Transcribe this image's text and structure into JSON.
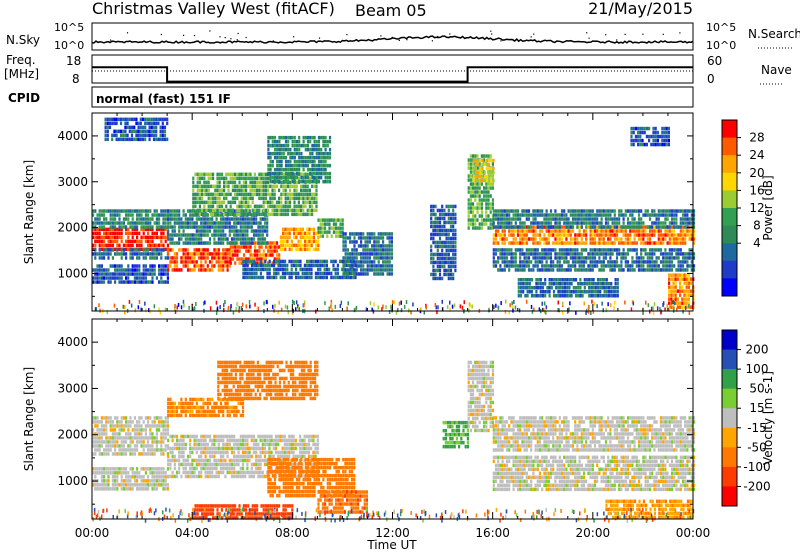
{
  "header": {
    "station": "Christmas Valley West (fitACF)",
    "beam": "Beam 05",
    "date": "21/May/2015"
  },
  "panels": {
    "nsky": {
      "label": "N.Sky",
      "tick_top": "10^5",
      "tick_bottom": "10^0",
      "right_label": "N.Search"
    },
    "freq": {
      "label_line1": "Freq.",
      "label_line2": "[MHz]",
      "tick_top": "18",
      "tick_bottom": "8",
      "right_tick_top": "60",
      "right_tick_bottom": "0",
      "right_label": "Nave"
    },
    "cpid": {
      "label": "CPID",
      "text": "normal (fast) 151 IF"
    }
  },
  "colorbars": {
    "power": {
      "title": "Power [dB]",
      "ticks": [
        "28",
        "24",
        "20",
        "16",
        "12",
        "8",
        "4"
      ],
      "colors": [
        "#ff0000",
        "#ff5a00",
        "#ffa500",
        "#ffd700",
        "#9acd32",
        "#32a050",
        "#2e8b57",
        "#1e6aa0",
        "#1e3cc8",
        "#0000ff"
      ]
    },
    "velocity": {
      "title": "Velocity [m s-1]",
      "ticks": [
        "200",
        "100",
        "50",
        "15",
        "-15",
        "-50",
        "-100",
        "-200"
      ],
      "colors": [
        "#0000c8",
        "#2850b4",
        "#32a046",
        "#7acd32",
        "#bebebe",
        "#ffa500",
        "#ff7800",
        "#ff3c00",
        "#ff0000"
      ]
    }
  },
  "chart_data": [
    {
      "type": "heatmap",
      "title": "Power",
      "ylabel": "Slant Range [km]",
      "xlabel": "",
      "x_ticks": [
        "00:00",
        "04:00",
        "08:00",
        "12:00",
        "16:00",
        "20:00",
        "00:00"
      ],
      "y_ticks": [
        "1000",
        "2000",
        "3000",
        "4000"
      ],
      "ylim": [
        180,
        4500
      ],
      "colorbar_range": [
        0,
        30
      ],
      "bands": [
        {
          "t0": 0.0,
          "t1": 3.0,
          "r0": 1550,
          "r1": 2000,
          "p": 28
        },
        {
          "t0": 0.0,
          "t1": 3.0,
          "r0": 2000,
          "r1": 2400,
          "p": 10
        },
        {
          "t0": 0.0,
          "t1": 3.0,
          "r0": 1300,
          "r1": 1550,
          "p": 8
        },
        {
          "t0": 0.0,
          "t1": 3.0,
          "r0": 800,
          "r1": 1200,
          "p": 6
        },
        {
          "t0": 0.5,
          "t1": 3.0,
          "r0": 3900,
          "r1": 4400,
          "p": 6
        },
        {
          "t0": 3.0,
          "t1": 5.5,
          "r0": 1050,
          "r1": 1550,
          "p": 26
        },
        {
          "t0": 5.5,
          "t1": 7.5,
          "r0": 1250,
          "r1": 1700,
          "p": 26
        },
        {
          "t0": 7.5,
          "t1": 9.0,
          "r0": 1500,
          "r1": 2000,
          "p": 22
        },
        {
          "t0": 9.0,
          "t1": 10.0,
          "r0": 1800,
          "r1": 2200,
          "p": 14
        },
        {
          "t0": 3.0,
          "t1": 7.0,
          "r0": 1700,
          "r1": 2400,
          "p": 9
        },
        {
          "t0": 4.0,
          "t1": 9.0,
          "r0": 2300,
          "r1": 3200,
          "p": 14
        },
        {
          "t0": 7.0,
          "t1": 9.5,
          "r0": 3000,
          "r1": 4000,
          "p": 10
        },
        {
          "t0": 6.0,
          "t1": 10.5,
          "r0": 900,
          "r1": 1300,
          "p": 7
        },
        {
          "t0": 10.0,
          "t1": 12.0,
          "r0": 1000,
          "r1": 1900,
          "p": 8
        },
        {
          "t0": 13.5,
          "t1": 14.5,
          "r0": 900,
          "r1": 2500,
          "p": 7
        },
        {
          "t0": 15.0,
          "t1": 16.0,
          "r0": 2000,
          "r1": 3600,
          "p": 14
        },
        {
          "t0": 15.2,
          "t1": 16.0,
          "r0": 3000,
          "r1": 3500,
          "p": 20
        },
        {
          "t0": 16.0,
          "t1": 24.0,
          "r0": 1650,
          "r1": 2050,
          "p": 24
        },
        {
          "t0": 16.0,
          "t1": 24.0,
          "r0": 2050,
          "r1": 2400,
          "p": 9
        },
        {
          "t0": 16.0,
          "t1": 24.0,
          "r0": 1050,
          "r1": 1550,
          "p": 8
        },
        {
          "t0": 17.0,
          "t1": 21.0,
          "r0": 500,
          "r1": 900,
          "p": 8
        },
        {
          "t0": 23.0,
          "t1": 24.0,
          "r0": 300,
          "r1": 1000,
          "p": 24
        },
        {
          "t0": 21.5,
          "t1": 23.0,
          "r0": 3800,
          "r1": 4200,
          "p": 6
        }
      ]
    },
    {
      "type": "heatmap",
      "title": "Velocity",
      "ylabel": "Slant Range [km]",
      "xlabel": "Time UT",
      "x_ticks": [
        "00:00",
        "04:00",
        "08:00",
        "12:00",
        "16:00",
        "20:00",
        "00:00"
      ],
      "y_ticks": [
        "1000",
        "2000",
        "3000",
        "4000"
      ],
      "ylim": [
        180,
        4500
      ],
      "colorbar_range": [
        -250,
        250
      ],
      "bands": [
        {
          "t0": 0.0,
          "t1": 3.0,
          "r0": 1550,
          "r1": 2400,
          "v": 0
        },
        {
          "t0": 0.0,
          "t1": 3.0,
          "r0": 800,
          "r1": 1300,
          "v": 0
        },
        {
          "t0": 3.0,
          "t1": 9.0,
          "r0": 1050,
          "r1": 2000,
          "v": 0
        },
        {
          "t0": 3.0,
          "t1": 6.0,
          "r0": 2400,
          "r1": 2800,
          "v": -60
        },
        {
          "t0": 5.0,
          "t1": 9.0,
          "r0": 2800,
          "r1": 3600,
          "v": -80
        },
        {
          "t0": 7.0,
          "t1": 10.5,
          "r0": 700,
          "r1": 1500,
          "v": -70
        },
        {
          "t0": 9.0,
          "t1": 11.0,
          "r0": 300,
          "r1": 800,
          "v": -90
        },
        {
          "t0": 4.0,
          "t1": 8.0,
          "r0": 200,
          "r1": 500,
          "v": -150
        },
        {
          "t0": 14.0,
          "t1": 15.0,
          "r0": 1700,
          "r1": 2300,
          "v": 60
        },
        {
          "t0": 15.0,
          "t1": 16.0,
          "r0": 2100,
          "r1": 3600,
          "v": 0
        },
        {
          "t0": 16.0,
          "t1": 24.0,
          "r0": 1650,
          "r1": 2400,
          "v": 0
        },
        {
          "t0": 16.0,
          "t1": 24.0,
          "r0": 800,
          "r1": 1550,
          "v": 0
        },
        {
          "t0": 20.5,
          "t1": 24.0,
          "r0": 250,
          "r1": 600,
          "v": -40
        }
      ]
    }
  ],
  "summary_data": {
    "freq_mhz": [
      {
        "t": 0,
        "f": 13.6
      },
      {
        "t": 3,
        "f": 8.5
      },
      {
        "t": 15,
        "f": 13.6
      },
      {
        "t": 24,
        "f": 13.6
      }
    ]
  }
}
